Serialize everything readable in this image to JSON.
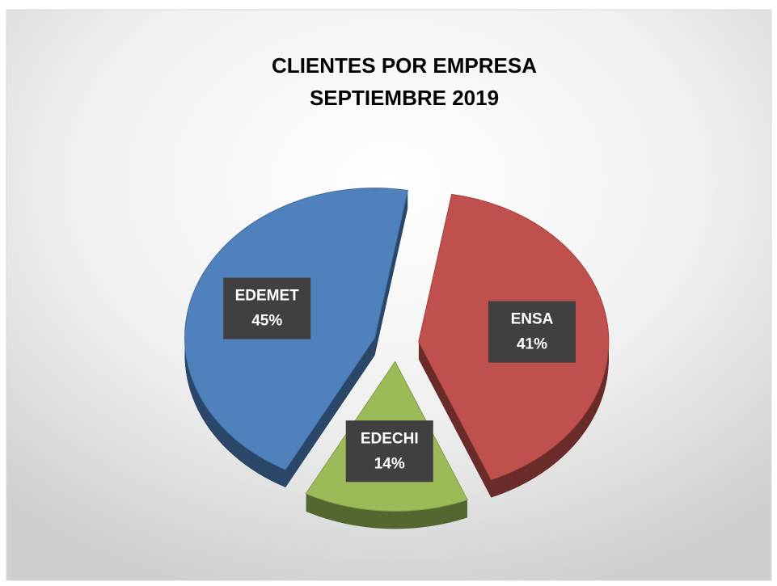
{
  "chart_data": {
    "type": "pie",
    "title": "CLIENTES POR EMPRESA",
    "subtitle": "SEPTIEMBRE 2019",
    "categories": [
      "ENSA",
      "EDECHI",
      "EDEMET"
    ],
    "values": [
      41,
      14,
      45
    ],
    "value_labels": [
      "41%",
      "14%",
      "45%"
    ],
    "colors": [
      "#c0504d",
      "#9bbb59",
      "#4f81bd"
    ]
  }
}
